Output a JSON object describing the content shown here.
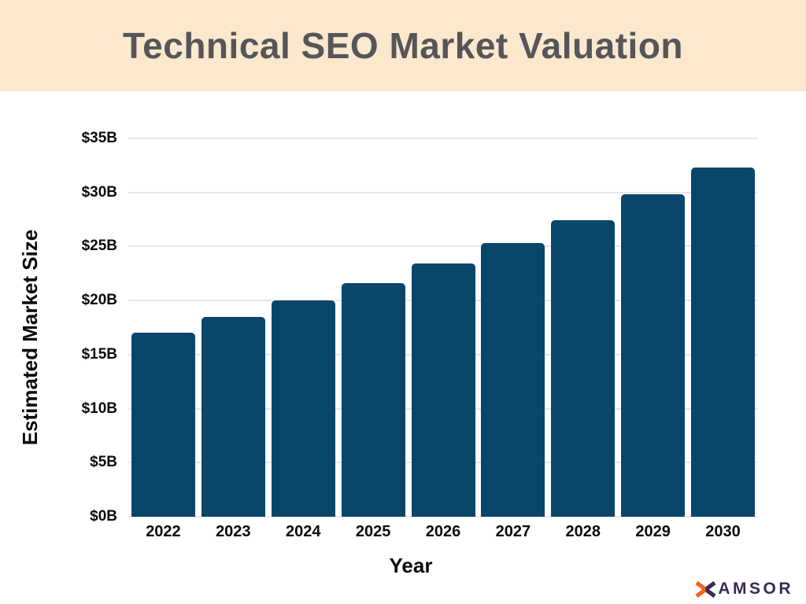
{
  "header": {
    "title": "Technical SEO Market Valuation"
  },
  "colors": {
    "banner_bg": "#fbe8cd",
    "title_text": "#54565a",
    "bar": "#0a4669",
    "gridline": "#e7e7e7",
    "axis_text": "#0b0b0b",
    "logo_purple": "#3a2b52",
    "logo_orange": "#f4621f"
  },
  "chart_data": {
    "type": "bar",
    "title": "Technical SEO Market Valuation",
    "xlabel": "Year",
    "ylabel": "Estimated Market Size",
    "categories": [
      "2022",
      "2023",
      "2024",
      "2025",
      "2026",
      "2027",
      "2028",
      "2029",
      "2030"
    ],
    "values": [
      17.0,
      18.5,
      20.0,
      21.6,
      23.4,
      25.3,
      27.4,
      29.8,
      32.3
    ],
    "unit": "$B",
    "ylim": [
      0,
      35
    ],
    "ytick_step": 5,
    "ytick_labels": [
      "$0B",
      "$5B",
      "$10B",
      "$15B",
      "$20B",
      "$25B",
      "$30B",
      "$35B"
    ],
    "grid": true,
    "legend": false
  },
  "logo": {
    "rest": "AMSOR"
  }
}
